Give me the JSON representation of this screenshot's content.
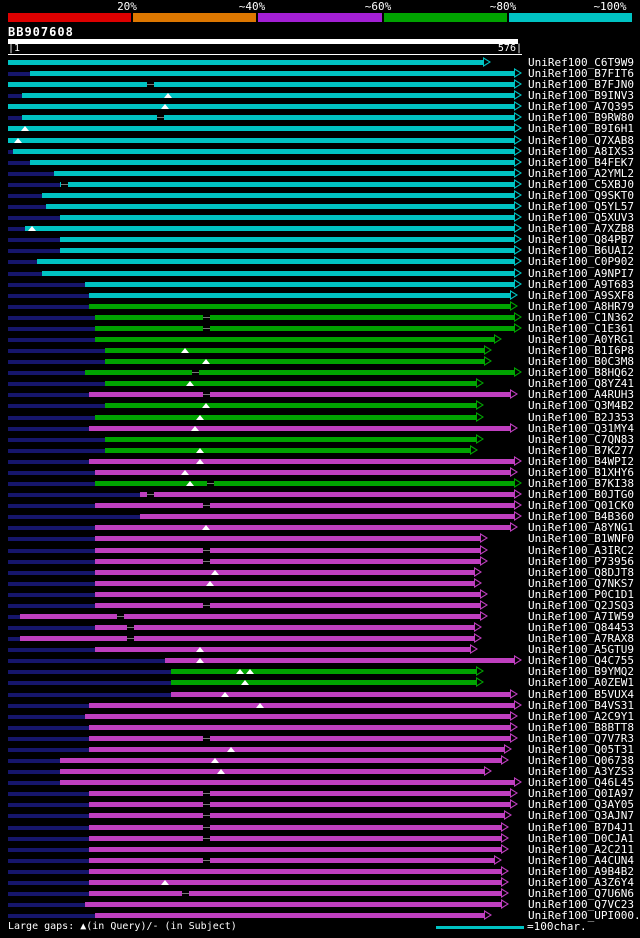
{
  "scale_bar": {
    "tick_labels": [
      "20%",
      "~40%",
      "~60%",
      "~80%",
      "~100%"
    ],
    "segment_colors": [
      "#dd0000",
      "#dd7700",
      "#a31fd4",
      "#00a300",
      "#00c3c3"
    ]
  },
  "query": {
    "name": "BB907608",
    "ruler_start": "|1",
    "ruler_end": "576|"
  },
  "legend": {
    "gaps_text": "Large gaps: ▲(in Query)/- (in Subject)",
    "unit_text": "=100char."
  },
  "colors": {
    "cyan": "#00c3c3",
    "green": "#00a300",
    "magenta": "#bf3fbf",
    "navy": "#16166b",
    "query_bar": "#ffffff"
  },
  "chart_data": {
    "type": "bar",
    "title": "BB907608",
    "x_range": [
      1,
      576
    ],
    "identity_classes": {
      "c": "~100%",
      "g": "~80%",
      "m": "~60%"
    },
    "rows": [
      {
        "label": "UniRef100_C6T9W9",
        "cls": "c",
        "start": 1,
        "end": 541
      },
      {
        "label": "UniRef100_B7FIT6",
        "cls": "c",
        "start": 26,
        "end": 576
      },
      {
        "label": "UniRef100_B7FJN0",
        "cls": "c",
        "start": 1,
        "end": 576,
        "gaps": [
          160
        ]
      },
      {
        "label": "UniRef100_B9INV3",
        "cls": "c",
        "start": 17,
        "end": 576,
        "tris": [
          180
        ]
      },
      {
        "label": "UniRef100_A7Q395",
        "cls": "c",
        "start": 1,
        "end": 576,
        "tris": [
          177
        ]
      },
      {
        "label": "UniRef100_B9RW80",
        "cls": "c",
        "start": 17,
        "end": 576,
        "gaps": [
          171
        ]
      },
      {
        "label": "UniRef100_B9I6H1",
        "cls": "c",
        "start": 1,
        "end": 576,
        "tris": [
          20
        ]
      },
      {
        "label": "UniRef100_Q7XAB8",
        "cls": "c",
        "start": 1,
        "end": 576,
        "tris": [
          12
        ]
      },
      {
        "label": "UniRef100_A8IXS3",
        "cls": "c",
        "start": 7,
        "end": 576
      },
      {
        "label": "UniRef100_B4FEK7",
        "cls": "c",
        "start": 26,
        "end": 576
      },
      {
        "label": "UniRef100_A2YML2",
        "cls": "c",
        "start": 53,
        "end": 576
      },
      {
        "label": "UniRef100_C5XBJ0",
        "cls": "c",
        "start": 59,
        "end": 576,
        "gaps": [
          64
        ]
      },
      {
        "label": "UniRef100_Q9SKT0",
        "cls": "c",
        "start": 39,
        "end": 576
      },
      {
        "label": "UniRef100_Q5YL57",
        "cls": "c",
        "start": 44,
        "end": 576
      },
      {
        "label": "UniRef100_Q5XUV3",
        "cls": "c",
        "start": 59,
        "end": 576
      },
      {
        "label": "UniRef100_A7XZB8",
        "cls": "c",
        "start": 20,
        "end": 576,
        "tris": [
          28
        ]
      },
      {
        "label": "UniRef100_Q84PB7",
        "cls": "c",
        "start": 59,
        "end": 576
      },
      {
        "label": "UniRef100_B6UAI2",
        "cls": "c",
        "start": 59,
        "end": 576
      },
      {
        "label": "UniRef100_C0P902",
        "cls": "c",
        "start": 33,
        "end": 576
      },
      {
        "label": "UniRef100_A9NPI7",
        "cls": "c",
        "start": 39,
        "end": 576
      },
      {
        "label": "UniRef100_A9T683",
        "cls": "c",
        "start": 87,
        "end": 576
      },
      {
        "label": "UniRef100_A9SXF8",
        "cls": "c",
        "start": 92,
        "end": 572
      },
      {
        "label": "UniRef100_A8HR79",
        "cls": "g",
        "start": 92,
        "end": 572
      },
      {
        "label": "UniRef100_C1N362",
        "cls": "g",
        "start": 98,
        "end": 576,
        "gaps": [
          222
        ]
      },
      {
        "label": "UniRef100_C1E361",
        "cls": "g",
        "start": 98,
        "end": 576,
        "gaps": [
          222
        ]
      },
      {
        "label": "UniRef100_A0YRG1",
        "cls": "g",
        "start": 98,
        "end": 554
      },
      {
        "label": "UniRef100_B1I6P8",
        "cls": "g",
        "start": 109,
        "end": 542,
        "tris": [
          199
        ]
      },
      {
        "label": "UniRef100_B0C3M8",
        "cls": "g",
        "start": 109,
        "end": 542,
        "tris": [
          222
        ]
      },
      {
        "label": "UniRef100_B8HQ62",
        "cls": "g",
        "start": 87,
        "end": 576,
        "gaps": [
          210
        ]
      },
      {
        "label": "UniRef100_Q8YZ41",
        "cls": "g",
        "start": 109,
        "end": 533,
        "tris": [
          205
        ]
      },
      {
        "label": "UniRef100_A4RUH3",
        "cls": "m",
        "start": 92,
        "end": 572,
        "gaps": [
          222
        ]
      },
      {
        "label": "UniRef100_Q3M4B2",
        "cls": "g",
        "start": 109,
        "end": 533,
        "tris": [
          222
        ]
      },
      {
        "label": "UniRef100_B2J353",
        "cls": "g",
        "start": 98,
        "end": 533,
        "tris": [
          216
        ]
      },
      {
        "label": "UniRef100_Q31MY4",
        "cls": "m",
        "start": 92,
        "end": 572,
        "tris": [
          210
        ]
      },
      {
        "label": "UniRef100_C7QN83",
        "cls": "g",
        "start": 109,
        "end": 533
      },
      {
        "label": "UniRef100_B7K277",
        "cls": "g",
        "start": 109,
        "end": 527,
        "tris": [
          216
        ]
      },
      {
        "label": "UniRef100_B4WPI2",
        "cls": "m",
        "start": 92,
        "end": 576,
        "tris": [
          216
        ]
      },
      {
        "label": "UniRef100_B1XHY6",
        "cls": "m",
        "start": 98,
        "end": 572,
        "tris": [
          199
        ]
      },
      {
        "label": "UniRef100_B7KI38",
        "cls": "g",
        "start": 98,
        "end": 576,
        "tris": [
          205
        ],
        "gaps": [
          227
        ]
      },
      {
        "label": "UniRef100_B0JTG0",
        "cls": "m",
        "start": 149,
        "end": 576,
        "gaps": [
          160
        ]
      },
      {
        "label": "UniRef100_Q01CK0",
        "cls": "m",
        "start": 98,
        "end": 576,
        "gaps": [
          222
        ]
      },
      {
        "label": "UniRef100_B4B360",
        "cls": "m",
        "start": 149,
        "end": 576
      },
      {
        "label": "UniRef100_A8YNG1",
        "cls": "m",
        "start": 98,
        "end": 572,
        "tris": [
          222
        ]
      },
      {
        "label": "UniRef100_B1WNF0",
        "cls": "m",
        "start": 98,
        "end": 538
      },
      {
        "label": "UniRef100_A3IRC2",
        "cls": "m",
        "start": 98,
        "end": 538,
        "gaps": [
          222
        ]
      },
      {
        "label": "UniRef100_P73956",
        "cls": "m",
        "start": 98,
        "end": 538,
        "gaps": [
          222
        ]
      },
      {
        "label": "UniRef100_Q8DJT8",
        "cls": "m",
        "start": 98,
        "end": 531,
        "tris": [
          233
        ]
      },
      {
        "label": "UniRef100_Q7NKS7",
        "cls": "m",
        "start": 98,
        "end": 531,
        "tris": [
          227
        ]
      },
      {
        "label": "UniRef100_P0C1D1",
        "cls": "m",
        "start": 98,
        "end": 538
      },
      {
        "label": "UniRef100_Q2JSQ3",
        "cls": "m",
        "start": 98,
        "end": 538,
        "gaps": [
          222
        ]
      },
      {
        "label": "UniRef100_A7IW59",
        "cls": "m",
        "start": 14,
        "end": 538,
        "gaps": [
          126
        ]
      },
      {
        "label": "UniRef100_Q84453",
        "cls": "m",
        "start": 98,
        "end": 531,
        "gaps": [
          137
        ]
      },
      {
        "label": "UniRef100_A7RAX8",
        "cls": "m",
        "start": 14,
        "end": 531,
        "gaps": [
          137
        ]
      },
      {
        "label": "UniRef100_A5GTU9",
        "cls": "m",
        "start": 98,
        "end": 527,
        "tris": [
          216
        ]
      },
      {
        "label": "UniRef100_Q4C755",
        "cls": "m",
        "start": 177,
        "end": 576,
        "tris": [
          216
        ]
      },
      {
        "label": "UniRef100_B9YMQ2",
        "cls": "g",
        "start": 183,
        "end": 533,
        "tris": [
          261,
          272
        ]
      },
      {
        "label": "UniRef100_A0ZEW1",
        "cls": "g",
        "start": 183,
        "end": 533,
        "tris": [
          266
        ]
      },
      {
        "label": "UniRef100_B5VUX4",
        "cls": "m",
        "start": 183,
        "end": 572,
        "tris": [
          244
        ]
      },
      {
        "label": "UniRef100_B4VS31",
        "cls": "m",
        "start": 92,
        "end": 576,
        "tris": [
          283
        ]
      },
      {
        "label": "UniRef100_A2C9Y1",
        "cls": "m",
        "start": 87,
        "end": 572
      },
      {
        "label": "UniRef100_B8BTT8",
        "cls": "m",
        "start": 92,
        "end": 572
      },
      {
        "label": "UniRef100_Q7V7R3",
        "cls": "m",
        "start": 92,
        "end": 572,
        "gaps": [
          222
        ]
      },
      {
        "label": "UniRef100_Q05T31",
        "cls": "m",
        "start": 92,
        "end": 565,
        "tris": [
          250
        ]
      },
      {
        "label": "UniRef100_Q06738",
        "cls": "m",
        "start": 59,
        "end": 561,
        "tris": [
          233
        ]
      },
      {
        "label": "UniRef100_A3YZS3",
        "cls": "m",
        "start": 59,
        "end": 542,
        "tris": [
          239
        ]
      },
      {
        "label": "UniRef100_Q46L45",
        "cls": "m",
        "start": 59,
        "end": 576
      },
      {
        "label": "UniRef100_Q0IA97",
        "cls": "m",
        "start": 92,
        "end": 572,
        "gaps": [
          222
        ]
      },
      {
        "label": "UniRef100_Q3AY05",
        "cls": "m",
        "start": 92,
        "end": 572,
        "gaps": [
          222
        ]
      },
      {
        "label": "UniRef100_Q3AJN7",
        "cls": "m",
        "start": 92,
        "end": 565,
        "gaps": [
          222
        ]
      },
      {
        "label": "UniRef100_B7D4J1",
        "cls": "m",
        "start": 92,
        "end": 561,
        "gaps": [
          222
        ]
      },
      {
        "label": "UniRef100_D0CJA1",
        "cls": "m",
        "start": 92,
        "end": 561,
        "gaps": [
          222
        ]
      },
      {
        "label": "UniRef100_A2C211",
        "cls": "m",
        "start": 92,
        "end": 561
      },
      {
        "label": "UniRef100_A4CUN4",
        "cls": "m",
        "start": 92,
        "end": 554,
        "gaps": [
          222
        ]
      },
      {
        "label": "UniRef100_A9B4B2",
        "cls": "m",
        "start": 92,
        "end": 561
      },
      {
        "label": "UniRef100_A3Z6Y4",
        "cls": "m",
        "start": 92,
        "end": 561,
        "tris": [
          177
        ]
      },
      {
        "label": "UniRef100_Q7U6N6",
        "cls": "m",
        "start": 92,
        "end": 561,
        "gaps": [
          199
        ]
      },
      {
        "label": "UniRef100_Q7VC23",
        "cls": "m",
        "start": 87,
        "end": 561
      },
      {
        "label": "UniRef100_UPI000...",
        "cls": "m",
        "start": 98,
        "end": 542
      }
    ]
  }
}
